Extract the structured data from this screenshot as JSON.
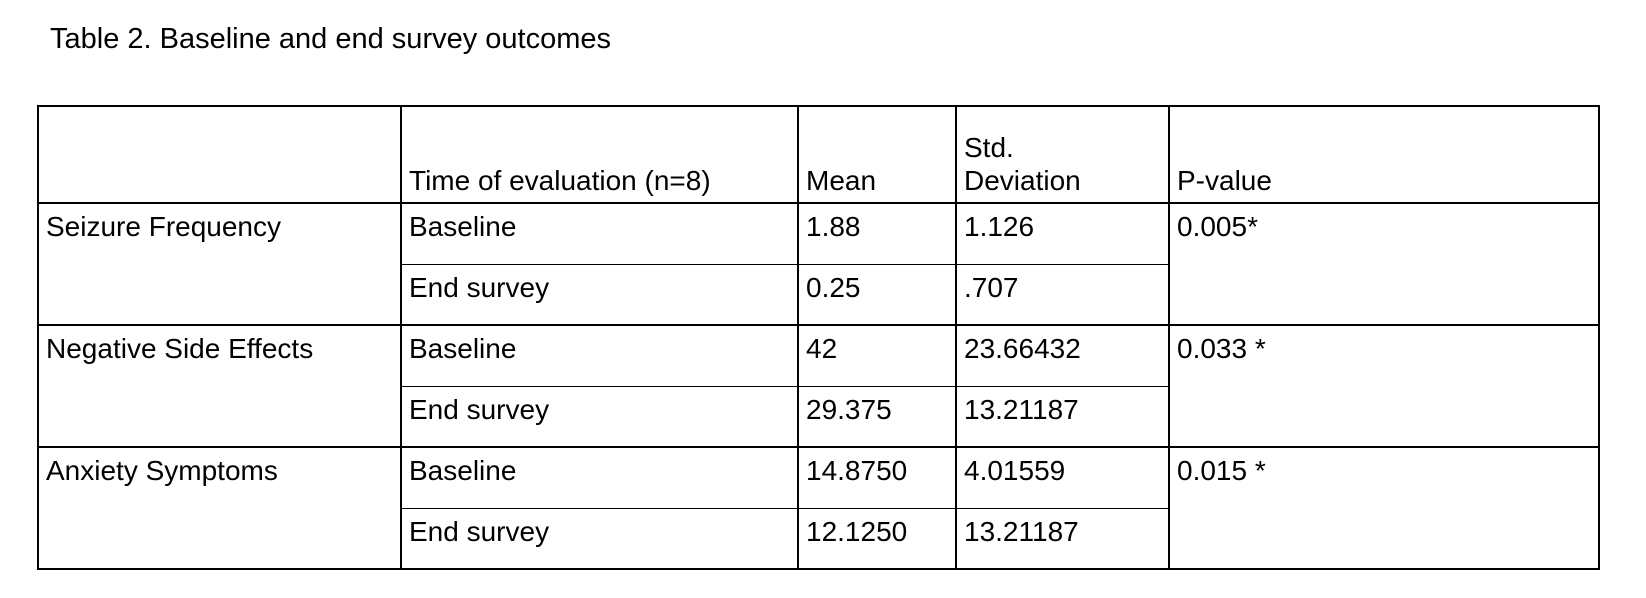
{
  "title": "Table 2. Baseline and end survey outcomes",
  "table": {
    "headers": {
      "category": "",
      "time": "Time of evaluation (n=8)",
      "mean": "Mean",
      "sd": "Std. Deviation",
      "pvalue": "P-value"
    },
    "groups": [
      {
        "label": "Seizure Frequency",
        "p_value": "0.005*",
        "rows": [
          {
            "time": "Baseline",
            "mean": "1.88",
            "sd": "1.126"
          },
          {
            "time": "End survey",
            "mean": "0.25",
            "sd": ".707"
          }
        ]
      },
      {
        "label": "Negative Side Effects",
        "p_value": "0.033 *",
        "rows": [
          {
            "time": "Baseline",
            "mean": "42",
            "sd": "23.66432"
          },
          {
            "time": "End survey",
            "mean": "29.375",
            "sd": "13.21187"
          }
        ]
      },
      {
        "label": "Anxiety Symptoms",
        "p_value": "0.015 *",
        "rows": [
          {
            "time": "Baseline",
            "mean": "14.8750",
            "sd": "4.01559"
          },
          {
            "time": "End survey",
            "mean": "12.1250",
            "sd": "13.21187"
          }
        ]
      }
    ]
  }
}
